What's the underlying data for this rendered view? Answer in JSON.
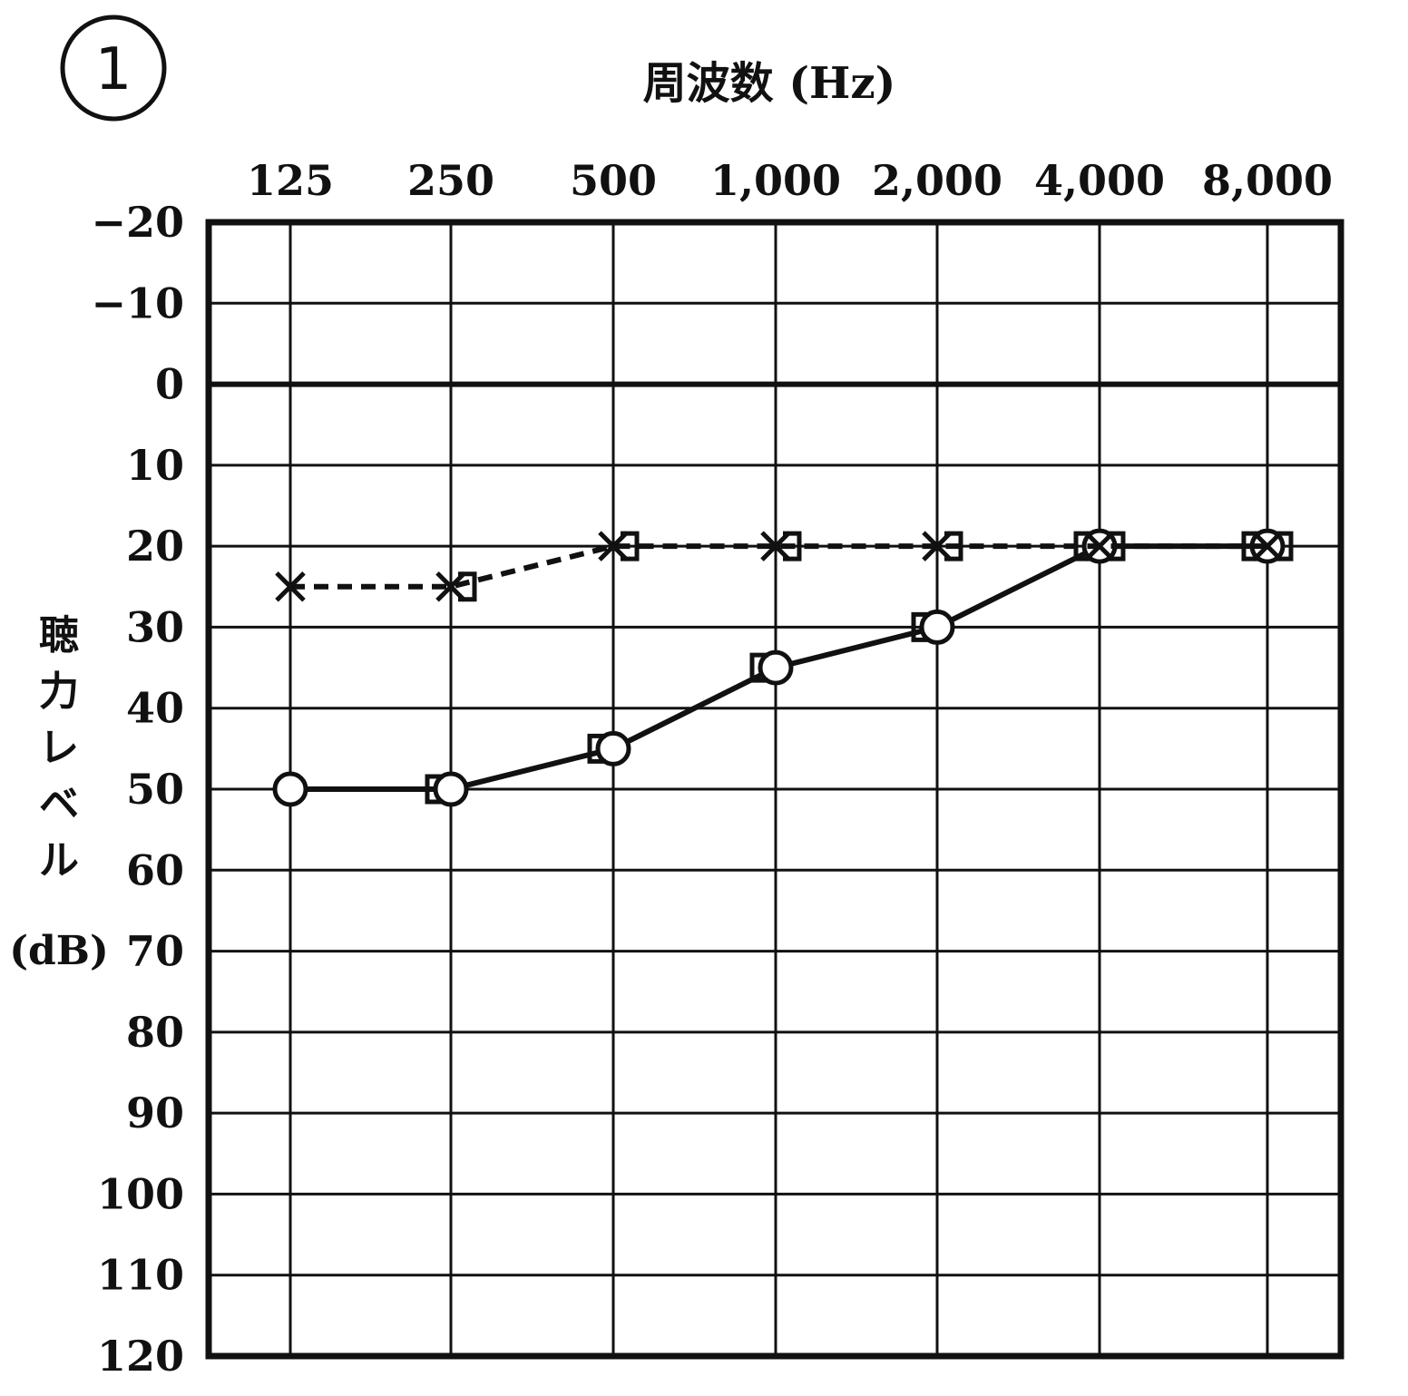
{
  "panel_label": "1",
  "chart_data": {
    "type": "line",
    "title": "周波数 (Hz)",
    "ylabel_chars": [
      "聴",
      "力",
      "レ",
      "ベ",
      "ル"
    ],
    "ylabel_unit": "(dB)",
    "categories": [
      "125",
      "250",
      "500",
      "1,000",
      "2,000",
      "4,000",
      "8,000"
    ],
    "yticks": [
      "−20",
      "−10",
      "0",
      "10",
      "20",
      "30",
      "40",
      "50",
      "60",
      "70",
      "80",
      "90",
      "100",
      "110",
      "120"
    ],
    "ylim": [
      -20,
      120
    ],
    "y_inverted": true,
    "grid": true,
    "series": [
      {
        "marker": "circle",
        "line": "solid",
        "x": [
          "125",
          "250",
          "500",
          "1,000",
          "2,000",
          "4,000",
          "8,000"
        ],
        "values": [
          50,
          50,
          45,
          35,
          30,
          20,
          20
        ]
      },
      {
        "marker": "cross",
        "line": "dashed",
        "x": [
          "125",
          "250",
          "500",
          "1,000",
          "2,000",
          "4,000",
          "8,000"
        ],
        "values": [
          25,
          25,
          20,
          20,
          20,
          20,
          20
        ]
      },
      {
        "marker": "bracket-left",
        "line": "none",
        "x": [
          "250",
          "500",
          "1,000",
          "2,000",
          "4,000",
          "8,000"
        ],
        "values": [
          50,
          45,
          35,
          30,
          20,
          20
        ]
      },
      {
        "marker": "bracket-right",
        "line": "none",
        "x": [
          "250",
          "500",
          "1,000",
          "2,000",
          "4,000",
          "8,000"
        ],
        "values": [
          25,
          20,
          20,
          20,
          20,
          20
        ]
      }
    ]
  }
}
